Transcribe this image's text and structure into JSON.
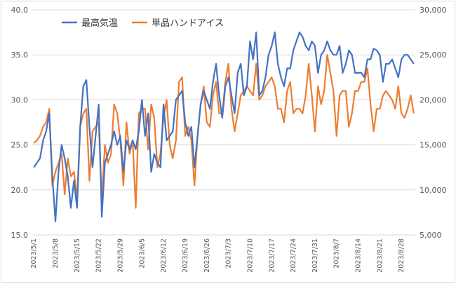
{
  "chart_data": {
    "type": "line",
    "legend_position": "top-left",
    "grid": true,
    "y_left": {
      "min": 15,
      "max": 40,
      "step": 5,
      "tick_labels": [
        "15.0",
        "20.0",
        "25.0",
        "30.0",
        "35.0",
        "40.0"
      ]
    },
    "y_right": {
      "min": 5000,
      "max": 30000,
      "step": 5000,
      "tick_labels": [
        "5,000",
        "10,000",
        "15,000",
        "20,000",
        "25,000",
        "30,000"
      ]
    },
    "x": {
      "start": "2023-05-01",
      "count": 124,
      "tick_labels": [
        "2023/5/1",
        "2023/5/8",
        "2023/5/15",
        "2023/5/22",
        "2023/5/29",
        "2023/6/5",
        "2023/6/12",
        "2023/6/19",
        "2023/6/26",
        "2023/7/3",
        "2023/7/10",
        "2023/7/17",
        "2023/7/24",
        "2023/7/31",
        "2023/8/7",
        "2023/8/14",
        "2023/8/21",
        "2023/8/28"
      ]
    },
    "series": [
      {
        "name": "最高気温",
        "axis": "left",
        "color": "#4472C4",
        "values": [
          22.5,
          23.0,
          23.5,
          25.5,
          26.5,
          28.5,
          21.5,
          16.5,
          22.0,
          25.0,
          23.5,
          21.5,
          18.0,
          21.0,
          18.0,
          27.0,
          31.5,
          32.2,
          27.0,
          22.5,
          26.0,
          29.5,
          17.0,
          23.0,
          24.0,
          25.0,
          26.5,
          25.0,
          26.0,
          22.0,
          25.5,
          24.5,
          25.5,
          24.5,
          26.5,
          30.0,
          26.0,
          28.5,
          22.0,
          24.0,
          23.0,
          22.5,
          29.5,
          25.5,
          26.0,
          26.5,
          30.0,
          30.5,
          31.0,
          27.5,
          26.0,
          27.0,
          22.5,
          26.0,
          29.5,
          31.0,
          30.0,
          29.0,
          32.0,
          34.0,
          30.5,
          28.0,
          31.5,
          32.5,
          30.5,
          28.5,
          33.0,
          34.0,
          30.5,
          31.5,
          36.5,
          34.5,
          37.5,
          30.5,
          31.0,
          32.5,
          35.0,
          36.0,
          37.5,
          34.0,
          32.5,
          31.5,
          33.5,
          33.5,
          35.5,
          36.5,
          37.5,
          37.0,
          36.0,
          35.5,
          36.5,
          36.0,
          33.0,
          35.0,
          35.5,
          36.5,
          35.5,
          35.0,
          35.0,
          36.0,
          33.0,
          34.0,
          35.5,
          35.0,
          33.0,
          33.0,
          33.0,
          32.5,
          34.5,
          34.5,
          35.7,
          35.5,
          35.0,
          32.0,
          34.0,
          34.0,
          34.5,
          33.5,
          32.5,
          34.5,
          35.0,
          35.0,
          34.5,
          34.0
        ]
      },
      {
        "name": "単品ハンドアイス",
        "axis": "right",
        "color": "#ED7D31",
        "values": [
          15200,
          15500,
          16000,
          17000,
          17500,
          19000,
          10500,
          12000,
          13000,
          14000,
          9500,
          13500,
          11500,
          12000,
          9000,
          17000,
          18500,
          19000,
          11000,
          16500,
          17000,
          17500,
          9000,
          15000,
          13000,
          14000,
          19500,
          18500,
          15500,
          10500,
          17500,
          14000,
          15500,
          8000,
          18500,
          19000,
          19000,
          14500,
          19500,
          18000,
          12500,
          14000,
          18000,
          20000,
          15000,
          13500,
          15500,
          22000,
          22500,
          16000,
          17000,
          15500,
          10500,
          16000,
          19500,
          21500,
          17500,
          17000,
          20500,
          22000,
          18500,
          18500,
          22000,
          24000,
          19000,
          16500,
          18500,
          20500,
          21000,
          21500,
          21000,
          20500,
          24000,
          20000,
          20500,
          21500,
          22000,
          22500,
          21500,
          19000,
          19000,
          17500,
          21000,
          22000,
          18500,
          19000,
          19000,
          18500,
          20500,
          24000,
          20500,
          16500,
          21500,
          19500,
          21000,
          25000,
          23000,
          21000,
          16000,
          20500,
          21000,
          21000,
          17000,
          18500,
          21000,
          21000,
          22000,
          22000,
          23500,
          19500,
          16500,
          19000,
          19000,
          20500,
          21000,
          20500,
          20000,
          19000,
          21500,
          18500,
          18000,
          19000,
          20500,
          18500
        ]
      }
    ]
  }
}
